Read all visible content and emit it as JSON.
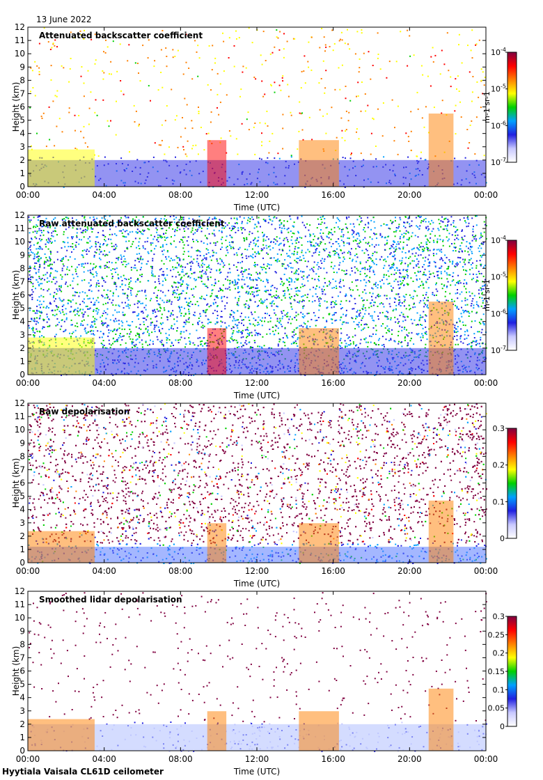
{
  "date_label": "13 June 2022",
  "footer": "Hyytiala Vaisala CL61D ceilometer",
  "chart_data": [
    {
      "type": "heatmap",
      "title": "Attenuated backscatter coefficient",
      "xlabel": "Time (UTC)",
      "ylabel": "Height (km)",
      "x_ticks": [
        "00:00",
        "04:00",
        "08:00",
        "12:00",
        "16:00",
        "20:00",
        "00:00"
      ],
      "xlim_hours": [
        0,
        24
      ],
      "ylim": [
        0,
        12
      ],
      "y_ticks": [
        "0",
        "1",
        "2",
        "3",
        "4",
        "5",
        "6",
        "7",
        "8",
        "9",
        "10",
        "11",
        "12"
      ],
      "colorbar": {
        "scale": "log",
        "range": [
          1e-07,
          0.0001
        ],
        "unit": "m-1 sr-1",
        "ticks": [
          {
            "base": "10",
            "exp": "-7"
          },
          {
            "base": "10",
            "exp": "-6"
          },
          {
            "base": "10",
            "exp": "-5"
          },
          {
            "base": "10",
            "exp": "-4"
          }
        ]
      },
      "colormap": [
        "#ffffff",
        "#c8c8ff",
        "#2020e0",
        "#00a0ff",
        "#00d000",
        "#ffff00",
        "#ff8000",
        "#ff0000",
        "#800040"
      ],
      "features": [
        {
          "desc": "boundary layer aerosol",
          "t_start": 0,
          "t_end": 24,
          "h_top": 2.4,
          "level": 0.25
        },
        {
          "desc": "cloud base layer",
          "t_start": 0,
          "t_end": 3.5,
          "h_top": 2.8,
          "level": 0.6
        },
        {
          "desc": "precipitation shaft",
          "t_start": 9.4,
          "t_end": 10.4,
          "h_top": 3.5,
          "level": 0.85
        },
        {
          "desc": "cloud",
          "t_start": 14.2,
          "t_end": 16.3,
          "h_top": 3.5,
          "level": 0.7
        },
        {
          "desc": "cloud",
          "t_start": 21.0,
          "t_end": 22.3,
          "h_top": 5.5,
          "level": 0.7
        }
      ]
    },
    {
      "type": "heatmap",
      "title": "Raw attenuated backscatter coefficient",
      "xlabel": "Time (UTC)",
      "ylabel": "Height (km)",
      "x_ticks": [
        "00:00",
        "04:00",
        "08:00",
        "12:00",
        "16:00",
        "20:00",
        "00:00"
      ],
      "xlim_hours": [
        0,
        24
      ],
      "ylim": [
        0,
        12
      ],
      "y_ticks": [
        "0",
        "1",
        "2",
        "3",
        "4",
        "5",
        "6",
        "7",
        "8",
        "9",
        "10",
        "11",
        "12"
      ],
      "colorbar": {
        "scale": "log",
        "range": [
          1e-07,
          0.0001
        ],
        "unit": "m-1 sr-1",
        "ticks": [
          {
            "base": "10",
            "exp": "-7"
          },
          {
            "base": "10",
            "exp": "-6"
          },
          {
            "base": "10",
            "exp": "-5"
          },
          {
            "base": "10",
            "exp": "-4"
          }
        ]
      },
      "colormap": [
        "#ffffff",
        "#c8c8ff",
        "#2020e0",
        "#00a0ff",
        "#00d000",
        "#ffff00",
        "#ff8000",
        "#ff0000",
        "#800040"
      ]
    },
    {
      "type": "heatmap",
      "title": "Raw depolarisation",
      "xlabel": "Time (UTC)",
      "ylabel": "Height (km)",
      "x_ticks": [
        "00:00",
        "04:00",
        "08:00",
        "12:00",
        "16:00",
        "20:00",
        "00:00"
      ],
      "xlim_hours": [
        0,
        24
      ],
      "ylim": [
        0,
        12
      ],
      "y_ticks": [
        "0",
        "1",
        "2",
        "3",
        "4",
        "5",
        "6",
        "7",
        "8",
        "9",
        "10",
        "11",
        "12"
      ],
      "colorbar": {
        "scale": "linear",
        "range": [
          0,
          0.3
        ],
        "ticks": [
          {
            "v": 0,
            "label": "0"
          },
          {
            "v": 0.1,
            "label": "0.1"
          },
          {
            "v": 0.2,
            "label": "0.2"
          },
          {
            "v": 0.3,
            "label": "0.3"
          }
        ]
      },
      "colormap": [
        "#ffffff",
        "#c8c8ff",
        "#2020e0",
        "#00a0ff",
        "#00d000",
        "#ffff00",
        "#ff8000",
        "#ff0000",
        "#800040"
      ]
    },
    {
      "type": "heatmap",
      "title": "Smoothed lidar depolarisation",
      "xlabel": "Time (UTC)",
      "ylabel": "Height (km)",
      "x_ticks": [
        "00:00",
        "04:00",
        "08:00",
        "12:00",
        "16:00",
        "20:00",
        "00:00"
      ],
      "xlim_hours": [
        0,
        24
      ],
      "ylim": [
        0,
        12
      ],
      "y_ticks": [
        "0",
        "1",
        "2",
        "3",
        "4",
        "5",
        "6",
        "7",
        "8",
        "9",
        "10",
        "11",
        "12"
      ],
      "colorbar": {
        "scale": "linear",
        "range": [
          0,
          0.3
        ],
        "ticks": [
          {
            "v": 0,
            "label": "0"
          },
          {
            "v": 0.05,
            "label": "0.05"
          },
          {
            "v": 0.1,
            "label": "0.1"
          },
          {
            "v": 0.15,
            "label": "0.15"
          },
          {
            "v": 0.2,
            "label": "0.2"
          },
          {
            "v": 0.25,
            "label": "0.25"
          },
          {
            "v": 0.3,
            "label": "0.3"
          }
        ]
      },
      "colormap": [
        "#ffffff",
        "#c8c8ff",
        "#2020e0",
        "#00a0ff",
        "#00d000",
        "#ffff00",
        "#ff8000",
        "#ff0000",
        "#800040"
      ]
    }
  ]
}
